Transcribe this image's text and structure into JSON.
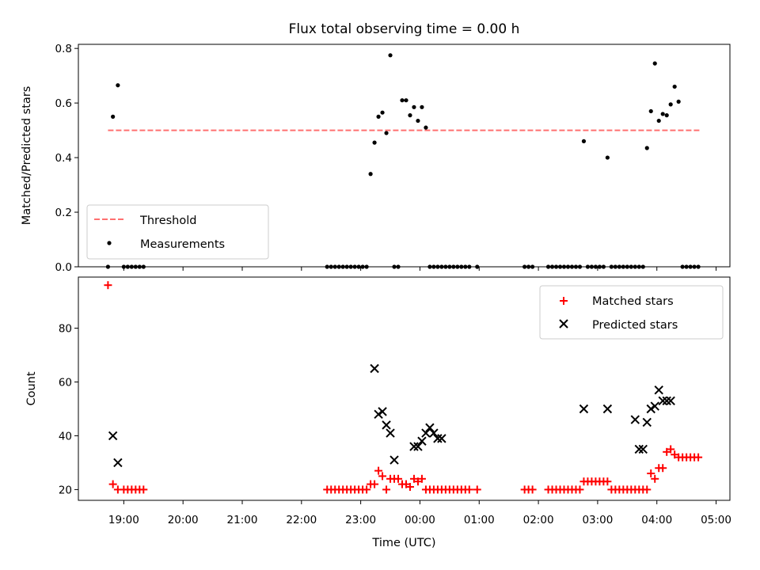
{
  "chart_data": [
    {
      "type": "scatter",
      "title": "Flux total observing time = 0.00 h",
      "xlabel": "",
      "ylabel": "Matched/Predicted stars",
      "ylim": [
        0,
        0.815
      ],
      "yticks": [
        "0.0",
        "0.2",
        "0.4",
        "0.6",
        "0.8"
      ],
      "xlim": [
        "18:14",
        "05:14"
      ],
      "threshold": {
        "name": "Threshold",
        "value": 0.5,
        "x": [
          "18:44",
          "04:44"
        ],
        "color": "#ff7070"
      },
      "legend": "lower-left",
      "series": [
        {
          "name": "Measurements",
          "color": "#000000",
          "x": [
            "18:44",
            "18:49",
            "18:54",
            "19:00",
            "19:04",
            "19:08",
            "19:12",
            "19:16",
            "19:20",
            "22:26",
            "22:30",
            "22:34",
            "22:38",
            "22:42",
            "22:46",
            "22:50",
            "22:54",
            "22:58",
            "23:02",
            "23:06",
            "23:10",
            "23:14",
            "23:18",
            "23:22",
            "23:26",
            "23:30",
            "23:34",
            "23:38",
            "23:42",
            "23:46",
            "23:50",
            "23:54",
            "23:58",
            "00:02",
            "00:06",
            "00:10",
            "00:14",
            "00:18",
            "00:22",
            "00:26",
            "00:30",
            "00:34",
            "00:38",
            "00:42",
            "00:46",
            "00:50",
            "00:58",
            "01:46",
            "01:50",
            "01:54",
            "02:10",
            "02:14",
            "02:18",
            "02:22",
            "02:26",
            "02:30",
            "02:34",
            "02:38",
            "02:42",
            "02:46",
            "02:50",
            "02:54",
            "02:58",
            "03:02",
            "03:06",
            "03:10",
            "03:14",
            "03:18",
            "03:22",
            "03:26",
            "03:30",
            "03:34",
            "03:38",
            "03:42",
            "03:46",
            "03:50",
            "03:54",
            "03:58",
            "04:02",
            "04:06",
            "04:10",
            "04:14",
            "04:18",
            "04:22",
            "04:26",
            "04:30",
            "04:34",
            "04:38",
            "04:42"
          ],
          "y": [
            0.0,
            0.55,
            0.665,
            0.0,
            0.0,
            0.0,
            0.0,
            0.0,
            0.0,
            0.0,
            0.0,
            0.0,
            0.0,
            0.0,
            0.0,
            0.0,
            0.0,
            0.0,
            0.0,
            0.0,
            0.34,
            0.455,
            0.55,
            0.565,
            0.49,
            0.775,
            0.0,
            0.0,
            0.61,
            0.61,
            0.555,
            0.585,
            0.535,
            0.585,
            0.51,
            0.0,
            0.0,
            0.0,
            0.0,
            0.0,
            0.0,
            0.0,
            0.0,
            0.0,
            0.0,
            0.0,
            0.0,
            0.0,
            0.0,
            0.0,
            0.0,
            0.0,
            0.0,
            0.0,
            0.0,
            0.0,
            0.0,
            0.0,
            0.0,
            0.46,
            0.0,
            0.0,
            0.0,
            0.0,
            0.0,
            0.4,
            0.0,
            0.0,
            0.0,
            0.0,
            0.0,
            0.0,
            0.0,
            0.0,
            0.0,
            0.435,
            0.57,
            0.745,
            0.535,
            0.56,
            0.555,
            0.595,
            0.66,
            0.605,
            0.0,
            0.0,
            0.0,
            0.0,
            0.0
          ]
        }
      ]
    },
    {
      "type": "scatter",
      "title": "",
      "xlabel": "Time (UTC)",
      "ylabel": "Count",
      "ylim": [
        16,
        99
      ],
      "yticks": [
        "20",
        "40",
        "60",
        "80"
      ],
      "xlim": [
        "18:14",
        "05:14"
      ],
      "xticks": [
        "19:00",
        "20:00",
        "21:00",
        "22:00",
        "23:00",
        "00:00",
        "01:00",
        "02:00",
        "03:00",
        "04:00",
        "05:00"
      ],
      "legend": "upper-right",
      "series": [
        {
          "name": "Matched stars",
          "color": "#ff0000",
          "marker": "plus",
          "x": [
            "18:44",
            "18:49",
            "18:54",
            "19:00",
            "19:04",
            "19:08",
            "19:12",
            "19:16",
            "19:20",
            "22:26",
            "22:30",
            "22:34",
            "22:38",
            "22:42",
            "22:46",
            "22:50",
            "22:54",
            "22:58",
            "23:02",
            "23:06",
            "23:10",
            "23:14",
            "23:18",
            "23:22",
            "23:26",
            "23:30",
            "23:34",
            "23:38",
            "23:42",
            "23:46",
            "23:50",
            "23:54",
            "23:58",
            "00:02",
            "00:06",
            "00:10",
            "00:14",
            "00:18",
            "00:22",
            "00:26",
            "00:30",
            "00:34",
            "00:38",
            "00:42",
            "00:46",
            "00:50",
            "00:58",
            "01:46",
            "01:50",
            "01:54",
            "02:10",
            "02:14",
            "02:18",
            "02:22",
            "02:26",
            "02:30",
            "02:34",
            "02:38",
            "02:42",
            "02:46",
            "02:50",
            "02:54",
            "02:58",
            "03:02",
            "03:06",
            "03:10",
            "03:14",
            "03:18",
            "03:22",
            "03:26",
            "03:30",
            "03:34",
            "03:38",
            "03:42",
            "03:46",
            "03:50",
            "03:54",
            "03:58",
            "04:02",
            "04:06",
            "04:10",
            "04:14",
            "04:18",
            "04:22",
            "04:26",
            "04:30",
            "04:34",
            "04:38",
            "04:42"
          ],
          "y": [
            96,
            22,
            20,
            20,
            20,
            20,
            20,
            20,
            20,
            20,
            20,
            20,
            20,
            20,
            20,
            20,
            20,
            20,
            20,
            20,
            22,
            22,
            27,
            25,
            20,
            24,
            24,
            24,
            22,
            22,
            21,
            24,
            23,
            24,
            20,
            20,
            20,
            20,
            20,
            20,
            20,
            20,
            20,
            20,
            20,
            20,
            20,
            20,
            20,
            20,
            20,
            20,
            20,
            20,
            20,
            20,
            20,
            20,
            20,
            23,
            23,
            23,
            23,
            23,
            23,
            23,
            20,
            20,
            20,
            20,
            20,
            20,
            20,
            20,
            20,
            20,
            26,
            24,
            28,
            28,
            34,
            35,
            33,
            32,
            32,
            32,
            32,
            32,
            32
          ]
        },
        {
          "name": "Predicted stars",
          "color": "#000000",
          "marker": "x",
          "x": [
            "18:49",
            "18:54",
            "23:14",
            "23:18",
            "23:22",
            "23:26",
            "23:30",
            "23:34",
            "23:54",
            "23:58",
            "00:02",
            "00:06",
            "00:10",
            "00:14",
            "00:18",
            "00:22",
            "02:46",
            "03:10",
            "03:38",
            "03:42",
            "03:46",
            "03:50",
            "03:54",
            "03:58",
            "04:02",
            "04:06",
            "04:10",
            "04:14"
          ],
          "y": [
            40,
            30,
            65,
            48,
            49,
            44,
            41,
            31,
            36,
            36,
            38,
            41,
            43,
            41,
            39,
            39,
            50,
            50,
            46,
            35,
            35,
            45,
            50,
            51,
            57,
            53,
            53,
            53
          ]
        }
      ]
    }
  ]
}
